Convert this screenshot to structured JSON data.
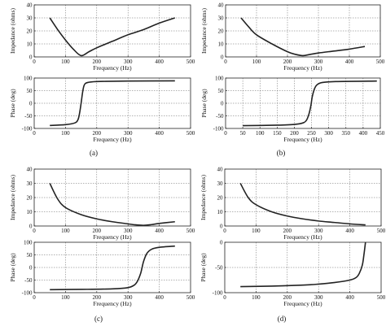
{
  "panels": [
    {
      "label": "(a)",
      "charts": [
        {
          "type": "line",
          "xlabel": "Frequency (Hz)",
          "ylabel": "Impedance (ohms)",
          "xlim": [
            0,
            500
          ],
          "ylim": [
            0,
            40
          ],
          "xticks": [
            0,
            100,
            200,
            300,
            400,
            500
          ],
          "yticks": [
            0,
            10,
            20,
            30,
            40
          ],
          "grid": true,
          "series": [
            {
              "x": [
                50,
                75,
                100,
                125,
                150,
                175,
                200,
                250,
                300,
                350,
                400,
                450
              ],
              "y": [
                30,
                21,
                13,
                6,
                1,
                4,
                7,
                12,
                17,
                21,
                26,
                30
              ]
            }
          ]
        },
        {
          "type": "line",
          "xlabel": "Frequency (Hz)",
          "ylabel": "Phase (deg)",
          "xlim": [
            0,
            500
          ],
          "ylim": [
            -100,
            100
          ],
          "xticks": [
            0,
            100,
            200,
            300,
            400,
            500
          ],
          "yticks": [
            -100,
            -50,
            0,
            50,
            100
          ],
          "grid": true,
          "series": [
            {
              "x": [
                50,
                100,
                130,
                140,
                145,
                150,
                155,
                160,
                170,
                200,
                300,
                450
              ],
              "y": [
                -88,
                -85,
                -78,
                -65,
                -40,
                0,
                45,
                72,
                82,
                86,
                88,
                89
              ]
            }
          ]
        }
      ]
    },
    {
      "label": "(b)",
      "charts": [
        {
          "type": "line",
          "xlabel": "Frequency (Hz)",
          "ylabel": "Impedance (ohms)",
          "xlim": [
            0,
            500
          ],
          "ylim": [
            0,
            40
          ],
          "xticks": [
            0,
            100,
            200,
            300,
            400,
            500
          ],
          "yticks": [
            0,
            10,
            20,
            30,
            40
          ],
          "grid": true,
          "series": [
            {
              "x": [
                50,
                75,
                100,
                150,
                200,
                225,
                250,
                275,
                300,
                350,
                400,
                450
              ],
              "y": [
                30,
                23,
                17,
                10,
                4,
                2,
                1,
                2,
                3,
                4.5,
                6,
                8
              ]
            }
          ]
        },
        {
          "type": "line",
          "xlabel": "Frequency (Hz)",
          "ylabel": "Phase (deg)",
          "xlim": [
            0,
            450
          ],
          "ylim": [
            -100,
            100
          ],
          "xticks": [
            0,
            50,
            100,
            150,
            200,
            250,
            300,
            350,
            400,
            450
          ],
          "yticks": [
            -100,
            -50,
            0,
            50,
            100
          ],
          "grid": true,
          "series": [
            {
              "x": [
                50,
                150,
                200,
                225,
                235,
                242,
                248,
                252,
                258,
                265,
                280,
                320,
                440
              ],
              "y": [
                -89,
                -87,
                -84,
                -78,
                -68,
                -45,
                -10,
                25,
                55,
                72,
                82,
                86,
                88
              ]
            }
          ]
        }
      ]
    },
    {
      "label": "(c)",
      "charts": [
        {
          "type": "line",
          "xlabel": "Frequency (Hz)",
          "ylabel": "Impedance (ohms)",
          "xlim": [
            0,
            500
          ],
          "ylim": [
            0,
            40
          ],
          "xticks": [
            0,
            100,
            200,
            300,
            400,
            500
          ],
          "yticks": [
            0,
            10,
            20,
            30,
            40
          ],
          "grid": true,
          "series": [
            {
              "x": [
                50,
                75,
                100,
                150,
                200,
                250,
                300,
                325,
                350,
                375,
                400,
                450
              ],
              "y": [
                30,
                19,
                13,
                8,
                5,
                3,
                1.5,
                0.8,
                0.5,
                1,
                1.8,
                3
              ]
            }
          ]
        },
        {
          "type": "line",
          "xlabel": "Frequency (Hz)",
          "ylabel": "Phase (deg)",
          "xlim": [
            0,
            500
          ],
          "ylim": [
            -100,
            100
          ],
          "xticks": [
            0,
            100,
            200,
            300,
            400,
            500
          ],
          "yticks": [
            -100,
            -50,
            0,
            50,
            100
          ],
          "grid": true,
          "series": [
            {
              "x": [
                50,
                150,
                250,
                300,
                320,
                330,
                340,
                345,
                350,
                360,
                375,
                400,
                450
              ],
              "y": [
                -88,
                -87,
                -85,
                -80,
                -70,
                -55,
                -25,
                0,
                25,
                55,
                72,
                80,
                85
              ]
            }
          ]
        }
      ]
    },
    {
      "label": "(d)",
      "charts": [
        {
          "type": "line",
          "xlabel": "Frequency (Hz)",
          "ylabel": "Impedance (ohms)",
          "xlim": [
            0,
            500
          ],
          "ylim": [
            0,
            40
          ],
          "xticks": [
            0,
            100,
            200,
            300,
            400,
            500
          ],
          "yticks": [
            0,
            10,
            20,
            30,
            40
          ],
          "grid": true,
          "series": [
            {
              "x": [
                50,
                75,
                100,
                150,
                200,
                250,
                300,
                350,
                400,
                450
              ],
              "y": [
                30,
                20,
                15,
                10,
                7,
                5,
                3.5,
                2.5,
                1.5,
                0.8
              ]
            }
          ]
        },
        {
          "type": "line",
          "xlabel": "Frequency (Hz)",
          "ylabel": "Phase (deg)",
          "xlim": [
            0,
            500
          ],
          "ylim": [
            -100,
            0
          ],
          "xticks": [
            0,
            100,
            200,
            300,
            400,
            500
          ],
          "yticks": [
            -100,
            -50,
            0
          ],
          "grid": true,
          "series": [
            {
              "x": [
                50,
                150,
                250,
                300,
                350,
                400,
                420,
                430,
                440,
                445,
                450
              ],
              "y": [
                -88,
                -87,
                -85,
                -83,
                -80,
                -75,
                -70,
                -62,
                -45,
                -25,
                0
              ]
            }
          ]
        }
      ]
    }
  ]
}
